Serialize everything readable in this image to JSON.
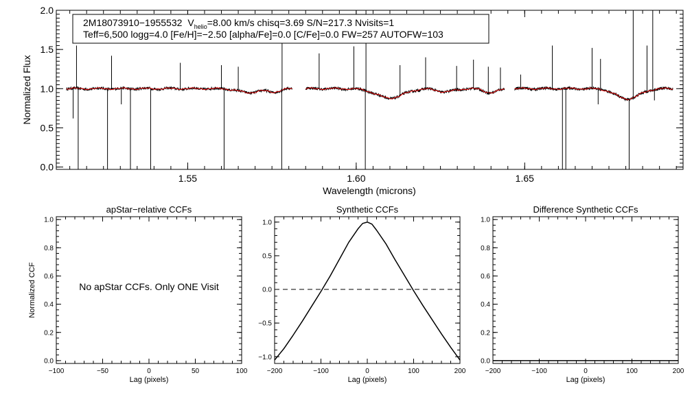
{
  "chart_data": [
    {
      "type": "line",
      "id": "spectrum",
      "title": "",
      "xlabel": "Wavelength (microns)",
      "ylabel": "Normalized Flux",
      "xlim": [
        1.511,
        1.697
      ],
      "ylim": [
        -0.03,
        2.0
      ],
      "xticks": [
        {
          "value": 1.55,
          "label": "1.55"
        },
        {
          "value": 1.6,
          "label": "1.60"
        },
        {
          "value": 1.65,
          "label": "1.65"
        }
      ],
      "yticks": [
        {
          "value": 0.0,
          "label": "0.0"
        },
        {
          "value": 0.5,
          "label": "0.5"
        },
        {
          "value": 1.0,
          "label": "1.0"
        },
        {
          "value": 1.5,
          "label": "1.5"
        },
        {
          "value": 2.0,
          "label": "2.0"
        }
      ],
      "chips": [
        {
          "start": 1.514,
          "end": 1.581
        },
        {
          "start": 1.585,
          "end": 1.644
        },
        {
          "start": 1.647,
          "end": 1.694
        }
      ],
      "absorption_dips": [
        {
          "x": 1.568,
          "depth": 0.05,
          "width": 0.006
        },
        {
          "x": 1.5755,
          "depth": 0.04,
          "width": 0.004
        },
        {
          "x": 1.61,
          "depth": 0.12,
          "width": 0.008
        },
        {
          "x": 1.6265,
          "depth": 0.04,
          "width": 0.005
        },
        {
          "x": 1.64,
          "depth": 0.05,
          "width": 0.004
        },
        {
          "x": 1.6805,
          "depth": 0.13,
          "width": 0.007
        }
      ],
      "spikes": [
        {
          "x": 1.516,
          "y": 0.62
        },
        {
          "x": 1.517,
          "y": 1.55
        },
        {
          "x": 1.5175,
          "y": -0.03
        },
        {
          "x": 1.5262,
          "y": -0.03
        },
        {
          "x": 1.5274,
          "y": 1.42
        },
        {
          "x": 1.5303,
          "y": 0.8
        },
        {
          "x": 1.533,
          "y": -0.03
        },
        {
          "x": 1.539,
          "y": -0.03
        },
        {
          "x": 1.5478,
          "y": 1.33
        },
        {
          "x": 1.56,
          "y": 1.3
        },
        {
          "x": 1.5608,
          "y": -0.03
        },
        {
          "x": 1.565,
          "y": 1.28
        },
        {
          "x": 1.5779,
          "y": -0.03
        },
        {
          "x": 1.578,
          "y": 1.65
        },
        {
          "x": 1.589,
          "y": 1.45
        },
        {
          "x": 1.5993,
          "y": 1.54
        },
        {
          "x": 1.6027,
          "y": -0.03
        },
        {
          "x": 1.6029,
          "y": 2.0
        },
        {
          "x": 1.613,
          "y": 1.3
        },
        {
          "x": 1.6206,
          "y": 1.4
        },
        {
          "x": 1.6298,
          "y": 1.29
        },
        {
          "x": 1.6348,
          "y": 1.37
        },
        {
          "x": 1.6392,
          "y": 1.28
        },
        {
          "x": 1.6428,
          "y": 1.27
        },
        {
          "x": 1.6488,
          "y": 1.18
        },
        {
          "x": 1.6582,
          "y": 1.55
        },
        {
          "x": 1.6612,
          "y": -0.03
        },
        {
          "x": 1.6622,
          "y": -0.03
        },
        {
          "x": 1.67,
          "y": 1.52
        },
        {
          "x": 1.6718,
          "y": 0.8
        },
        {
          "x": 1.6725,
          "y": 1.38
        },
        {
          "x": 1.681,
          "y": -0.03
        },
        {
          "x": 1.6822,
          "y": 2.0
        },
        {
          "x": 1.6863,
          "y": 1.55
        },
        {
          "x": 1.688,
          "y": 2.0
        },
        {
          "x": 1.6885,
          "y": 0.85
        }
      ],
      "series": [
        {
          "name": "observed spectrum",
          "color": "#000000"
        },
        {
          "name": "best-fit model",
          "color": "#ff0000"
        }
      ],
      "annotation": {
        "line1_star": "2M18073910−1955532",
        "line1_v": "V",
        "line1_sub": "helio",
        "line1_rest": "=8.00 km/s  chisq=3.69  S/N=217.3  Nvisits=1",
        "line2": "Teff=6,500 logg=4.0 [Fe/H]=−2.50 [alpha/Fe]=0.0 [C/Fe]=0.0 FW=257 AUTOFW=103"
      },
      "params": {
        "star": "2M18073910-1955532",
        "vhelio_kms": 8.0,
        "chisq": 3.69,
        "snr": 217.3,
        "nvisits": 1,
        "teff": 6500,
        "logg": 4.0,
        "feh": -2.5,
        "alpha_fe": 0.0,
        "c_fe": 0.0,
        "fw": 257,
        "autofw": 103
      }
    },
    {
      "type": "line",
      "id": "apstar",
      "title": "apStar−relative CCFs",
      "xlabel": "Lag (pixels)",
      "ylabel": "Normalized CCF",
      "xlim": [
        -100,
        100
      ],
      "ylim": [
        -0.02,
        1.02
      ],
      "xticks": [
        {
          "value": -100,
          "label": "−100"
        },
        {
          "value": -50,
          "label": "−50"
        },
        {
          "value": 0,
          "label": "0"
        },
        {
          "value": 50,
          "label": "50"
        },
        {
          "value": 100,
          "label": "100"
        }
      ],
      "yticks": [
        {
          "value": 0.0,
          "label": "0.0"
        },
        {
          "value": 0.2,
          "label": "0.2"
        },
        {
          "value": 0.4,
          "label": "0.4"
        },
        {
          "value": 0.6,
          "label": "0.6"
        },
        {
          "value": 0.8,
          "label": "0.8"
        },
        {
          "value": 1.0,
          "label": "1.0"
        }
      ],
      "message": "No apStar CCFs.  Only ONE Visit",
      "series": []
    },
    {
      "type": "line",
      "id": "synthetic",
      "title": "Synthetic CCFs",
      "xlabel": "Lag (pixels)",
      "ylabel": "",
      "xlim": [
        -200,
        200
      ],
      "ylim": [
        -1.1,
        1.08
      ],
      "xticks": [
        {
          "value": -200,
          "label": "−200"
        },
        {
          "value": -100,
          "label": "−100"
        },
        {
          "value": 0,
          "label": "0"
        },
        {
          "value": 100,
          "label": "100"
        },
        {
          "value": 200,
          "label": "200"
        }
      ],
      "yticks": [
        {
          "value": -1.0,
          "label": "−1.0"
        },
        {
          "value": -0.5,
          "label": "−0.5"
        },
        {
          "value": 0.0,
          "label": "0.0"
        },
        {
          "value": 0.5,
          "label": "0.5"
        },
        {
          "value": 1.0,
          "label": "1.0"
        }
      ],
      "reference_line": 0.0,
      "series": [
        {
          "name": "synthetic CCF",
          "x": [
            -200,
            -180,
            -160,
            -140,
            -120,
            -100,
            -80,
            -60,
            -40,
            -20,
            -10,
            0,
            10,
            20,
            40,
            60,
            80,
            100,
            120,
            140,
            160,
            180,
            200
          ],
          "y": [
            -1.05,
            -0.88,
            -0.68,
            -0.47,
            -0.25,
            -0.03,
            0.2,
            0.45,
            0.7,
            0.9,
            0.98,
            1.0,
            0.97,
            0.88,
            0.68,
            0.44,
            0.21,
            -0.02,
            -0.24,
            -0.45,
            -0.66,
            -0.86,
            -1.05
          ]
        }
      ]
    },
    {
      "type": "line",
      "id": "difference",
      "title": "Difference Synthetic CCFs",
      "xlabel": "Lag (pixels)",
      "ylabel": "",
      "xlim": [
        -200,
        200
      ],
      "ylim": [
        -0.02,
        1.02
      ],
      "xticks": [
        {
          "value": -200,
          "label": "−200"
        },
        {
          "value": -100,
          "label": "−100"
        },
        {
          "value": 0,
          "label": "0"
        },
        {
          "value": 100,
          "label": "100"
        },
        {
          "value": 200,
          "label": "200"
        }
      ],
      "yticks": [
        {
          "value": 0.0,
          "label": "0.0"
        },
        {
          "value": 0.2,
          "label": "0.2"
        },
        {
          "value": 0.4,
          "label": "0.4"
        },
        {
          "value": 0.6,
          "label": "0.6"
        },
        {
          "value": 0.8,
          "label": "0.8"
        },
        {
          "value": 1.0,
          "label": "1.0"
        }
      ],
      "series": [
        {
          "name": "difference CCF",
          "x": [
            -200,
            200
          ],
          "y": [
            0.0,
            0.0
          ]
        }
      ]
    }
  ]
}
